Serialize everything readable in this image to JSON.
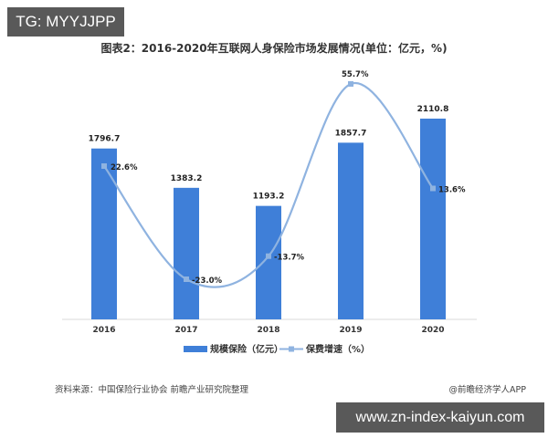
{
  "watermark_top": "TG: MYYJJPP",
  "title": "图表2：2016-2020年互联网人身保险市场发展情况(单位：亿元，%)",
  "source": "资料来源：中国保险行业协会 前瞻产业研究院整理",
  "credit": "@前瞻经济学人APP",
  "watermark_bottom": "www.zn-index-kaiyun.com",
  "colors": {
    "bar": "#3f7fd8",
    "line": "#8fb3e0",
    "axis": "#d9d9d9"
  },
  "chart_data": {
    "type": "bar",
    "title": "图表2：2016-2020年互联网人身保险市场发展情况(单位：亿元，%)",
    "categories": [
      "2016",
      "2017",
      "2018",
      "2019",
      "2020"
    ],
    "series": [
      {
        "name": "规模保险（亿元）",
        "type": "bar",
        "values": [
          1796.7,
          1383.2,
          1193.2,
          1857.7,
          2110.8
        ],
        "labels": [
          "1796.7",
          "1383.2",
          "1193.2",
          "1857.7",
          "2110.8"
        ]
      },
      {
        "name": "保费增速（%）",
        "type": "line",
        "values": [
          22.6,
          -23.0,
          -13.7,
          55.7,
          13.6
        ],
        "labels": [
          "22.6%",
          "-23.0%",
          "-13.7%",
          "55.7%",
          "13.6%"
        ]
      }
    ],
    "xlabel": "",
    "ylabel": "",
    "legend_position": "bottom",
    "grid": false
  }
}
